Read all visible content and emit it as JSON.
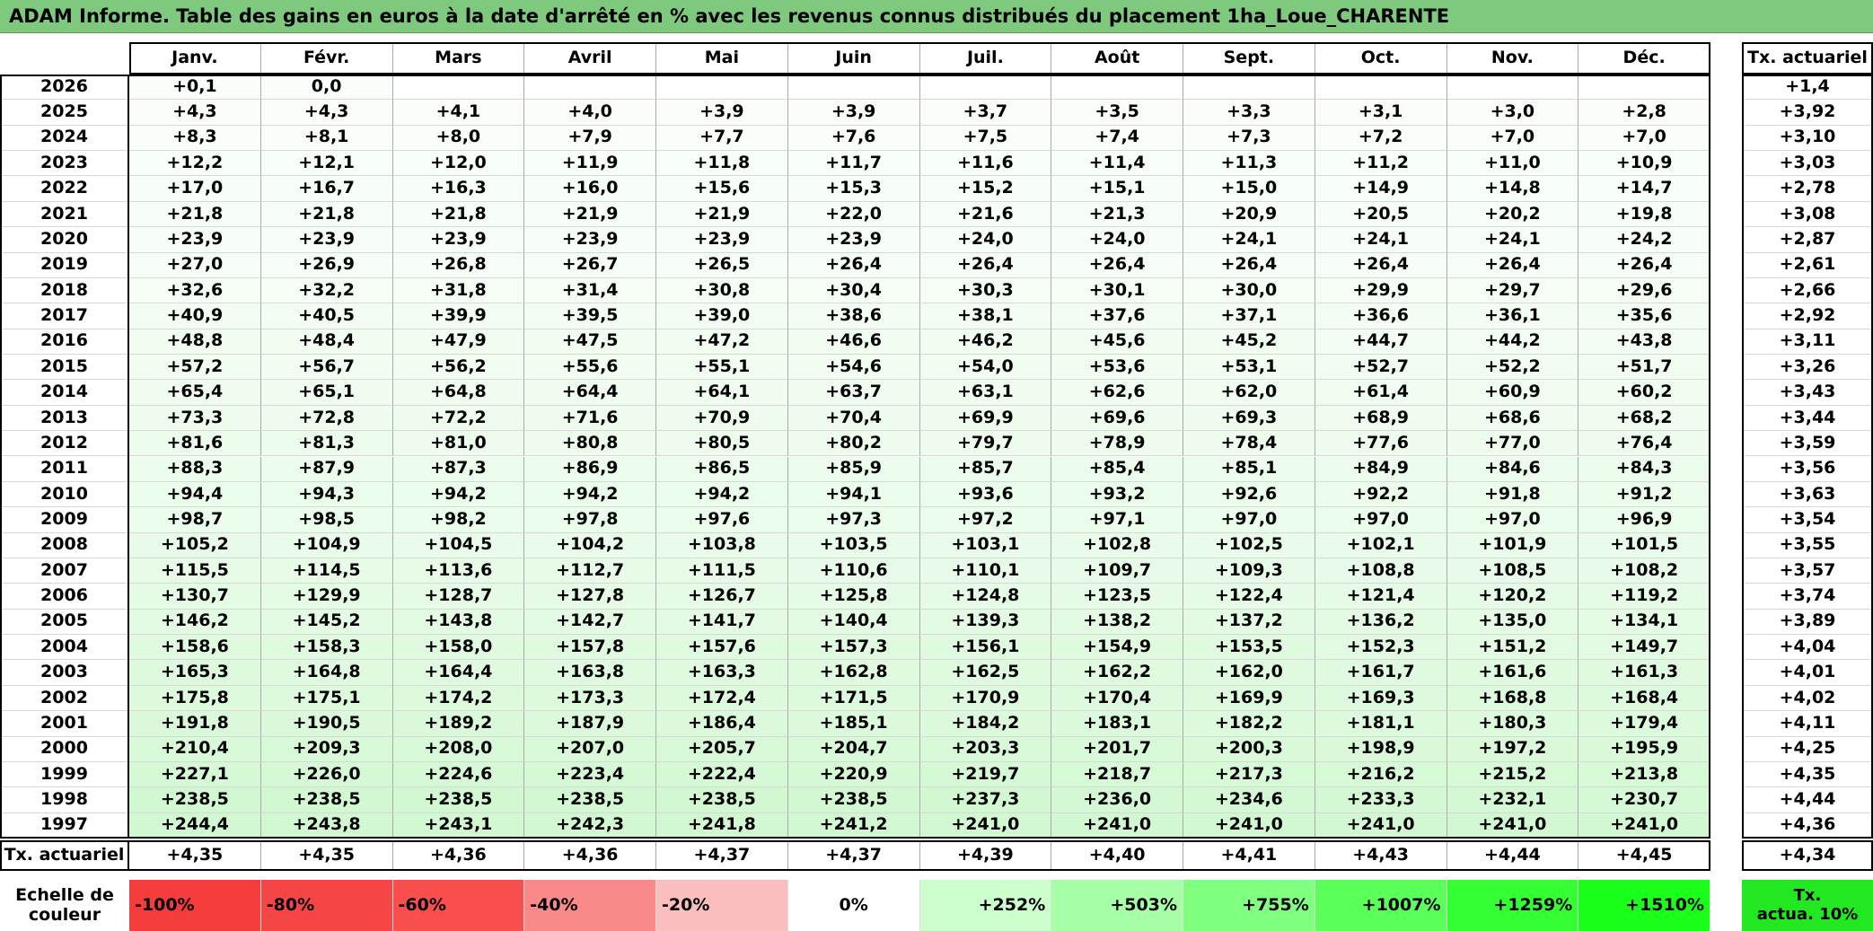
{
  "title": "ADAM Informe. Table des gains en euros à la date d'arrêté en % avec les revenus connus distribués du placement 1ha_Loue_CHARENTE",
  "table": {
    "columns": [
      "Janv.",
      "Févr.",
      "Mars",
      "Avril",
      "Mai",
      "Juin",
      "Juil.",
      "Août",
      "Sept.",
      "Oct.",
      "Nov.",
      "Déc."
    ],
    "total_header": "Tx. actuariel",
    "rows": [
      [
        "2026",
        "+0,1",
        "0,0",
        null,
        null,
        null,
        null,
        null,
        null,
        null,
        null,
        null,
        null,
        "+1,4"
      ],
      [
        "2025",
        "+4,3",
        "+4,3",
        "+4,1",
        "+4,0",
        "+3,9",
        "+3,9",
        "+3,7",
        "+3,5",
        "+3,3",
        "+3,1",
        "+3,0",
        "+2,8",
        "+3,92"
      ],
      [
        "2024",
        "+8,3",
        "+8,1",
        "+8,0",
        "+7,9",
        "+7,7",
        "+7,6",
        "+7,5",
        "+7,4",
        "+7,3",
        "+7,2",
        "+7,0",
        "+7,0",
        "+3,10"
      ],
      [
        "2023",
        "+12,2",
        "+12,1",
        "+12,0",
        "+11,9",
        "+11,8",
        "+11,7",
        "+11,6",
        "+11,4",
        "+11,3",
        "+11,2",
        "+11,0",
        "+10,9",
        "+3,03"
      ],
      [
        "2022",
        "+17,0",
        "+16,7",
        "+16,3",
        "+16,0",
        "+15,6",
        "+15,3",
        "+15,2",
        "+15,1",
        "+15,0",
        "+14,9",
        "+14,8",
        "+14,7",
        "+2,78"
      ],
      [
        "2021",
        "+21,8",
        "+21,8",
        "+21,8",
        "+21,9",
        "+21,9",
        "+22,0",
        "+21,6",
        "+21,3",
        "+20,9",
        "+20,5",
        "+20,2",
        "+19,8",
        "+3,08"
      ],
      [
        "2020",
        "+23,9",
        "+23,9",
        "+23,9",
        "+23,9",
        "+23,9",
        "+23,9",
        "+24,0",
        "+24,0",
        "+24,1",
        "+24,1",
        "+24,1",
        "+24,2",
        "+2,87"
      ],
      [
        "2019",
        "+27,0",
        "+26,9",
        "+26,8",
        "+26,7",
        "+26,5",
        "+26,4",
        "+26,4",
        "+26,4",
        "+26,4",
        "+26,4",
        "+26,4",
        "+26,4",
        "+2,61"
      ],
      [
        "2018",
        "+32,6",
        "+32,2",
        "+31,8",
        "+31,4",
        "+30,8",
        "+30,4",
        "+30,3",
        "+30,1",
        "+30,0",
        "+29,9",
        "+29,7",
        "+29,6",
        "+2,66"
      ],
      [
        "2017",
        "+40,9",
        "+40,5",
        "+39,9",
        "+39,5",
        "+39,0",
        "+38,6",
        "+38,1",
        "+37,6",
        "+37,1",
        "+36,6",
        "+36,1",
        "+35,6",
        "+2,92"
      ],
      [
        "2016",
        "+48,8",
        "+48,4",
        "+47,9",
        "+47,5",
        "+47,2",
        "+46,6",
        "+46,2",
        "+45,6",
        "+45,2",
        "+44,7",
        "+44,2",
        "+43,8",
        "+3,11"
      ],
      [
        "2015",
        "+57,2",
        "+56,7",
        "+56,2",
        "+55,6",
        "+55,1",
        "+54,6",
        "+54,0",
        "+53,6",
        "+53,1",
        "+52,7",
        "+52,2",
        "+51,7",
        "+3,26"
      ],
      [
        "2014",
        "+65,4",
        "+65,1",
        "+64,8",
        "+64,4",
        "+64,1",
        "+63,7",
        "+63,1",
        "+62,6",
        "+62,0",
        "+61,4",
        "+60,9",
        "+60,2",
        "+3,43"
      ],
      [
        "2013",
        "+73,3",
        "+72,8",
        "+72,2",
        "+71,6",
        "+70,9",
        "+70,4",
        "+69,9",
        "+69,6",
        "+69,3",
        "+68,9",
        "+68,6",
        "+68,2",
        "+3,44"
      ],
      [
        "2012",
        "+81,6",
        "+81,3",
        "+81,0",
        "+80,8",
        "+80,5",
        "+80,2",
        "+79,7",
        "+78,9",
        "+78,4",
        "+77,6",
        "+77,0",
        "+76,4",
        "+3,59"
      ],
      [
        "2011",
        "+88,3",
        "+87,9",
        "+87,3",
        "+86,9",
        "+86,5",
        "+85,9",
        "+85,7",
        "+85,4",
        "+85,1",
        "+84,9",
        "+84,6",
        "+84,3",
        "+3,56"
      ],
      [
        "2010",
        "+94,4",
        "+94,3",
        "+94,2",
        "+94,2",
        "+94,2",
        "+94,1",
        "+93,6",
        "+93,2",
        "+92,6",
        "+92,2",
        "+91,8",
        "+91,2",
        "+3,63"
      ],
      [
        "2009",
        "+98,7",
        "+98,5",
        "+98,2",
        "+97,8",
        "+97,6",
        "+97,3",
        "+97,2",
        "+97,1",
        "+97,0",
        "+97,0",
        "+97,0",
        "+96,9",
        "+3,54"
      ],
      [
        "2008",
        "+105,2",
        "+104,9",
        "+104,5",
        "+104,2",
        "+103,8",
        "+103,5",
        "+103,1",
        "+102,8",
        "+102,5",
        "+102,1",
        "+101,9",
        "+101,5",
        "+3,55"
      ],
      [
        "2007",
        "+115,5",
        "+114,5",
        "+113,6",
        "+112,7",
        "+111,5",
        "+110,6",
        "+110,1",
        "+109,7",
        "+109,3",
        "+108,8",
        "+108,5",
        "+108,2",
        "+3,57"
      ],
      [
        "2006",
        "+130,7",
        "+129,9",
        "+128,7",
        "+127,8",
        "+126,7",
        "+125,8",
        "+124,8",
        "+123,5",
        "+122,4",
        "+121,4",
        "+120,2",
        "+119,2",
        "+3,74"
      ],
      [
        "2005",
        "+146,2",
        "+145,2",
        "+143,8",
        "+142,7",
        "+141,7",
        "+140,4",
        "+139,3",
        "+138,2",
        "+137,2",
        "+136,2",
        "+135,0",
        "+134,1",
        "+3,89"
      ],
      [
        "2004",
        "+158,6",
        "+158,3",
        "+158,0",
        "+157,8",
        "+157,6",
        "+157,3",
        "+156,1",
        "+154,9",
        "+153,5",
        "+152,3",
        "+151,2",
        "+149,7",
        "+4,04"
      ],
      [
        "2003",
        "+165,3",
        "+164,8",
        "+164,4",
        "+163,8",
        "+163,3",
        "+162,8",
        "+162,5",
        "+162,2",
        "+162,0",
        "+161,7",
        "+161,6",
        "+161,3",
        "+4,01"
      ],
      [
        "2002",
        "+175,8",
        "+175,1",
        "+174,2",
        "+173,3",
        "+172,4",
        "+171,5",
        "+170,9",
        "+170,4",
        "+169,9",
        "+169,3",
        "+168,8",
        "+168,4",
        "+4,02"
      ],
      [
        "2001",
        "+191,8",
        "+190,5",
        "+189,2",
        "+187,9",
        "+186,4",
        "+185,1",
        "+184,2",
        "+183,1",
        "+182,2",
        "+181,1",
        "+180,3",
        "+179,4",
        "+4,11"
      ],
      [
        "2000",
        "+210,4",
        "+209,3",
        "+208,0",
        "+207,0",
        "+205,7",
        "+204,7",
        "+203,3",
        "+201,7",
        "+200,3",
        "+198,9",
        "+197,2",
        "+195,9",
        "+4,25"
      ],
      [
        "1999",
        "+227,1",
        "+226,0",
        "+224,6",
        "+223,4",
        "+222,4",
        "+220,9",
        "+219,7",
        "+218,7",
        "+217,3",
        "+216,2",
        "+215,2",
        "+213,8",
        "+4,35"
      ],
      [
        "1998",
        "+238,5",
        "+238,5",
        "+238,5",
        "+238,5",
        "+238,5",
        "+238,5",
        "+237,3",
        "+236,0",
        "+234,6",
        "+233,3",
        "+232,1",
        "+230,7",
        "+4,44"
      ],
      [
        "1997",
        "+244,4",
        "+243,8",
        "+243,1",
        "+242,3",
        "+241,8",
        "+241,2",
        "+241,0",
        "+241,0",
        "+241,0",
        "+241,0",
        "+241,0",
        "+241,0",
        "+4,36"
      ]
    ],
    "footer": {
      "label": "Tx. actuariel",
      "values": [
        "+4,35",
        "+4,35",
        "+4,36",
        "+4,36",
        "+4,37",
        "+4,37",
        "+4,39",
        "+4,40",
        "+4,41",
        "+4,43",
        "+4,44",
        "+4,45"
      ],
      "total": "+4,34"
    }
  },
  "scale": {
    "label": "Echelle de\ncouleur",
    "items": [
      {
        "label": "-100%",
        "color": "#f43c3c"
      },
      {
        "label": "-80%",
        "color": "#f64545"
      },
      {
        "label": "-60%",
        "color": "#f84e4e"
      },
      {
        "label": "-40%",
        "color": "#f98a8a"
      },
      {
        "label": "-20%",
        "color": "#fbbebe"
      },
      {
        "label": "0%",
        "color": "#ffffff"
      },
      {
        "label": "+252%",
        "color": "#ccffcc"
      },
      {
        "label": "+503%",
        "color": "#a6ffa6"
      },
      {
        "label": "+755%",
        "color": "#80ff80"
      },
      {
        "label": "+1007%",
        "color": "#5aff5a"
      },
      {
        "label": "+1259%",
        "color": "#33ff33"
      },
      {
        "label": "+1510%",
        "color": "#1aff1a"
      }
    ],
    "end": {
      "label": "Tx.\nactua. 10%",
      "color": "#22e822"
    }
  }
}
